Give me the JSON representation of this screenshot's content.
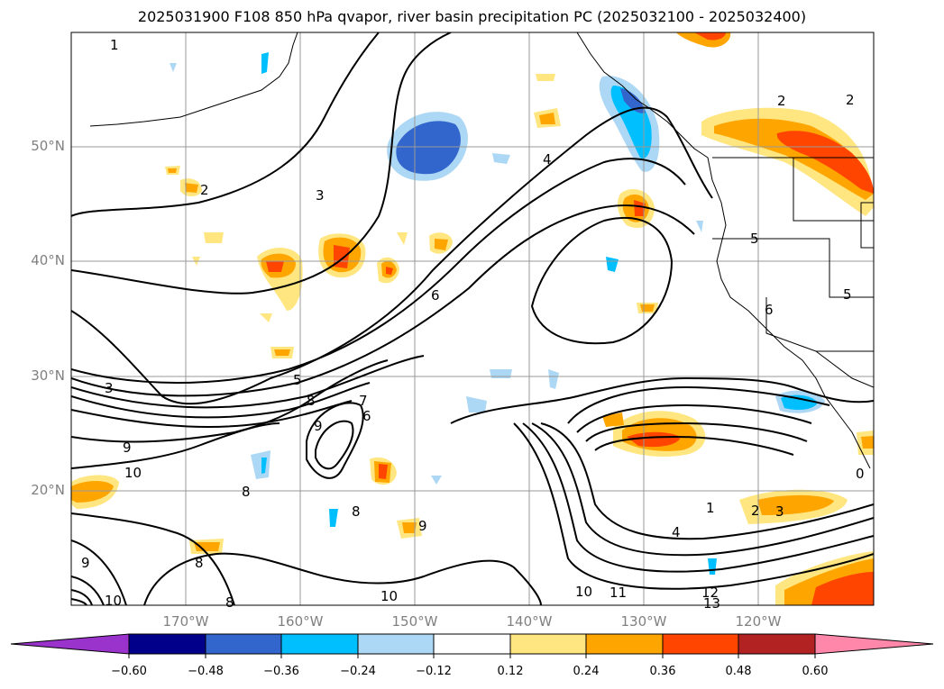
{
  "title": "2025031900 F108 850 hPa qvapor, river basin precipitation PC (2025032100 - 2025032400)",
  "map": {
    "lat_labels": [
      "50°N",
      "40°N",
      "30°N",
      "20°N"
    ],
    "lon_labels": [
      "170°W",
      "160°W",
      "150°W",
      "140°W",
      "130°W",
      "120°W"
    ],
    "contour_labels": [
      "1",
      "1",
      "2",
      "2",
      "2",
      "2",
      "3",
      "3",
      "3",
      "4",
      "4",
      "5",
      "5",
      "5",
      "6",
      "6",
      "6",
      "7",
      "8",
      "8",
      "8",
      "8",
      "8",
      "9",
      "9",
      "9",
      "9",
      "10",
      "10",
      "10",
      "10",
      "11",
      "12",
      "13",
      "0"
    ],
    "grid": true,
    "line_color": "#000000",
    "coastline_color": "#000000"
  },
  "colorbar": {
    "ticks": [
      "−0.60",
      "−0.48",
      "−0.36",
      "−0.24",
      "−0.12",
      "0.12",
      "0.24",
      "0.36",
      "0.48",
      "0.60"
    ],
    "colors": [
      "#9933cc",
      "#00008b",
      "#3366cc",
      "#00bfff",
      "#add8f5",
      "#ffffff",
      "#ffe680",
      "#ffa500",
      "#ff4500",
      "#b22222",
      "#ff88aa"
    ]
  }
}
